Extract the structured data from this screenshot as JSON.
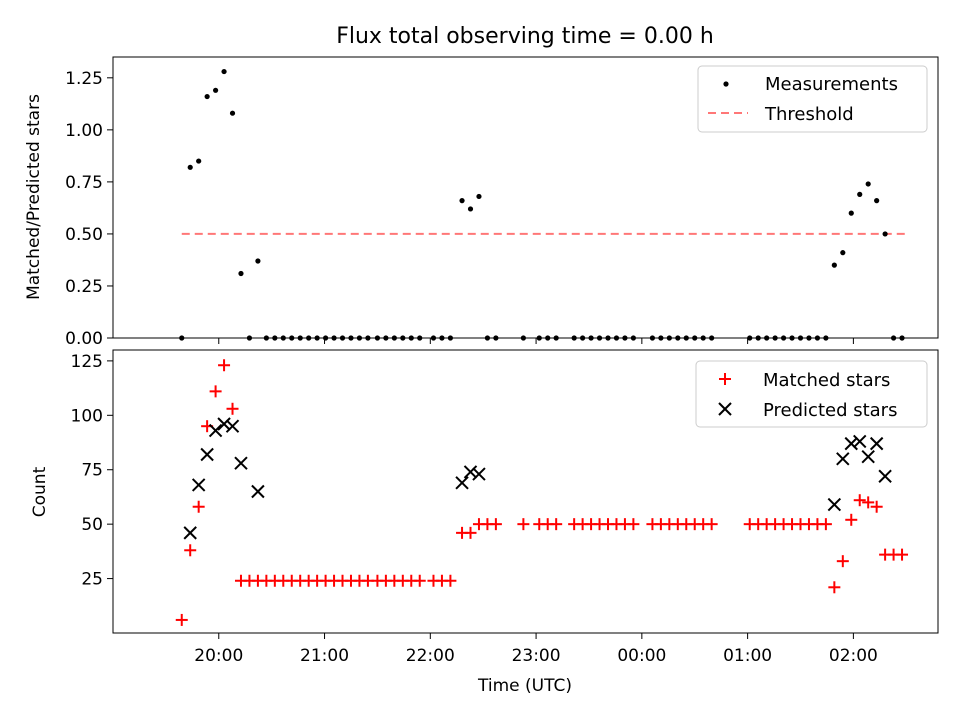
{
  "chart_data": [
    {
      "type": "scatter",
      "title": "Flux total observing time = 0.00 h",
      "ylabel": "Matched/Predicted stars",
      "xlabel": "",
      "ylim": [
        0,
        1.35
      ],
      "yticks": [
        0.0,
        0.25,
        0.5,
        0.75,
        1.0,
        1.25
      ],
      "ytick_labels": [
        "0.00",
        "0.25",
        "0.50",
        "0.75",
        "1.00",
        "1.25"
      ],
      "legend_position": "top-right",
      "grid": false,
      "series": [
        {
          "name": "Measurements",
          "marker": "dot",
          "color": "#000000",
          "points": [
            [
              19.65,
              0.0
            ],
            [
              19.73,
              0.82
            ],
            [
              19.81,
              0.85
            ],
            [
              19.89,
              1.16
            ],
            [
              19.97,
              1.19
            ],
            [
              20.05,
              1.28
            ],
            [
              20.13,
              1.08
            ],
            [
              20.21,
              0.31
            ],
            [
              20.29,
              0.0
            ],
            [
              20.37,
              0.37
            ],
            [
              20.45,
              0.0
            ],
            [
              20.53,
              0.0
            ],
            [
              20.61,
              0.0
            ],
            [
              20.69,
              0.0
            ],
            [
              20.77,
              0.0
            ],
            [
              20.85,
              0.0
            ],
            [
              20.93,
              0.0
            ],
            [
              21.01,
              0.0
            ],
            [
              21.09,
              0.0
            ],
            [
              21.17,
              0.0
            ],
            [
              21.25,
              0.0
            ],
            [
              21.33,
              0.0
            ],
            [
              21.41,
              0.0
            ],
            [
              21.5,
              0.0
            ],
            [
              21.58,
              0.0
            ],
            [
              21.66,
              0.0
            ],
            [
              21.74,
              0.0
            ],
            [
              21.82,
              0.0
            ],
            [
              21.9,
              0.0
            ],
            [
              22.03,
              0.0
            ],
            [
              22.11,
              0.0
            ],
            [
              22.19,
              0.0
            ],
            [
              22.3,
              0.66
            ],
            [
              22.38,
              0.62
            ],
            [
              22.46,
              0.68
            ],
            [
              22.54,
              0.0
            ],
            [
              22.62,
              0.0
            ],
            [
              22.88,
              0.0
            ],
            [
              23.03,
              0.0
            ],
            [
              23.11,
              0.0
            ],
            [
              23.19,
              0.0
            ],
            [
              23.36,
              0.0
            ],
            [
              23.44,
              0.0
            ],
            [
              23.52,
              0.0
            ],
            [
              23.6,
              0.0
            ],
            [
              23.68,
              0.0
            ],
            [
              23.76,
              0.0
            ],
            [
              23.84,
              0.0
            ],
            [
              23.92,
              0.0
            ],
            [
              24.1,
              0.0
            ],
            [
              24.18,
              0.0
            ],
            [
              24.26,
              0.0
            ],
            [
              24.34,
              0.0
            ],
            [
              24.42,
              0.0
            ],
            [
              24.5,
              0.0
            ],
            [
              24.58,
              0.0
            ],
            [
              24.66,
              0.0
            ],
            [
              25.02,
              0.0
            ],
            [
              25.1,
              0.0
            ],
            [
              25.18,
              0.0
            ],
            [
              25.26,
              0.0
            ],
            [
              25.34,
              0.0
            ],
            [
              25.42,
              0.0
            ],
            [
              25.5,
              0.0
            ],
            [
              25.58,
              0.0
            ],
            [
              25.66,
              0.0
            ],
            [
              25.74,
              0.0
            ],
            [
              25.82,
              0.35
            ],
            [
              25.9,
              0.41
            ],
            [
              25.98,
              0.6
            ],
            [
              26.06,
              0.69
            ],
            [
              26.14,
              0.74
            ],
            [
              26.22,
              0.66
            ],
            [
              26.3,
              0.5
            ],
            [
              26.38,
              0.0
            ],
            [
              26.46,
              0.0
            ]
          ]
        },
        {
          "name": "Threshold",
          "style": "dashed",
          "color": "#ff7777",
          "x": [
            19.65,
            26.5
          ],
          "y": [
            0.5,
            0.5
          ]
        }
      ]
    },
    {
      "type": "scatter",
      "title": "",
      "ylabel": "Count",
      "xlabel": "Time (UTC)",
      "ylim": [
        0,
        130
      ],
      "yticks": [
        25,
        50,
        75,
        100,
        125
      ],
      "ytick_labels": [
        "25",
        "50",
        "75",
        "100",
        "125"
      ],
      "xticks": [
        20,
        21,
        22,
        23,
        24,
        25,
        26
      ],
      "xtick_labels": [
        "20:00",
        "21:00",
        "22:00",
        "23:00",
        "00:00",
        "01:00",
        "02:00"
      ],
      "xlim": [
        19.0,
        26.8
      ],
      "legend_position": "top-right",
      "grid": false,
      "series": [
        {
          "name": "Matched stars",
          "marker": "plus",
          "color": "#ff0000",
          "points": [
            [
              19.65,
              6
            ],
            [
              19.73,
              38
            ],
            [
              19.81,
              58
            ],
            [
              19.89,
              95
            ],
            [
              19.97,
              111
            ],
            [
              20.05,
              123
            ],
            [
              20.13,
              103
            ],
            [
              20.21,
              24
            ],
            [
              20.29,
              24
            ],
            [
              20.37,
              24
            ],
            [
              20.45,
              24
            ],
            [
              20.53,
              24
            ],
            [
              20.61,
              24
            ],
            [
              20.69,
              24
            ],
            [
              20.77,
              24
            ],
            [
              20.85,
              24
            ],
            [
              20.93,
              24
            ],
            [
              21.01,
              24
            ],
            [
              21.09,
              24
            ],
            [
              21.17,
              24
            ],
            [
              21.25,
              24
            ],
            [
              21.33,
              24
            ],
            [
              21.41,
              24
            ],
            [
              21.5,
              24
            ],
            [
              21.58,
              24
            ],
            [
              21.66,
              24
            ],
            [
              21.74,
              24
            ],
            [
              21.82,
              24
            ],
            [
              21.9,
              24
            ],
            [
              22.03,
              24
            ],
            [
              22.11,
              24
            ],
            [
              22.19,
              24
            ],
            [
              22.3,
              46
            ],
            [
              22.38,
              46
            ],
            [
              22.46,
              50
            ],
            [
              22.54,
              50
            ],
            [
              22.62,
              50
            ],
            [
              22.88,
              50
            ],
            [
              23.03,
              50
            ],
            [
              23.11,
              50
            ],
            [
              23.19,
              50
            ],
            [
              23.36,
              50
            ],
            [
              23.44,
              50
            ],
            [
              23.52,
              50
            ],
            [
              23.6,
              50
            ],
            [
              23.68,
              50
            ],
            [
              23.76,
              50
            ],
            [
              23.84,
              50
            ],
            [
              23.92,
              50
            ],
            [
              24.1,
              50
            ],
            [
              24.18,
              50
            ],
            [
              24.26,
              50
            ],
            [
              24.34,
              50
            ],
            [
              24.42,
              50
            ],
            [
              24.5,
              50
            ],
            [
              24.58,
              50
            ],
            [
              24.66,
              50
            ],
            [
              25.02,
              50
            ],
            [
              25.1,
              50
            ],
            [
              25.18,
              50
            ],
            [
              25.26,
              50
            ],
            [
              25.34,
              50
            ],
            [
              25.42,
              50
            ],
            [
              25.5,
              50
            ],
            [
              25.58,
              50
            ],
            [
              25.66,
              50
            ],
            [
              25.74,
              50
            ],
            [
              25.82,
              21
            ],
            [
              25.9,
              33
            ],
            [
              25.98,
              52
            ],
            [
              26.06,
              61
            ],
            [
              26.14,
              60
            ],
            [
              26.22,
              58
            ],
            [
              26.3,
              36
            ],
            [
              26.38,
              36
            ],
            [
              26.46,
              36
            ]
          ]
        },
        {
          "name": "Predicted stars",
          "marker": "x",
          "color": "#000000",
          "points": [
            [
              19.73,
              46
            ],
            [
              19.81,
              68
            ],
            [
              19.89,
              82
            ],
            [
              19.97,
              93
            ],
            [
              20.05,
              96
            ],
            [
              20.13,
              95
            ],
            [
              20.21,
              78
            ],
            [
              20.37,
              65
            ],
            [
              22.3,
              69
            ],
            [
              22.38,
              74
            ],
            [
              22.46,
              73
            ],
            [
              25.82,
              59
            ],
            [
              25.9,
              80
            ],
            [
              25.98,
              87
            ],
            [
              26.06,
              88
            ],
            [
              26.14,
              81
            ],
            [
              26.22,
              87
            ],
            [
              26.3,
              72
            ]
          ]
        }
      ]
    }
  ]
}
